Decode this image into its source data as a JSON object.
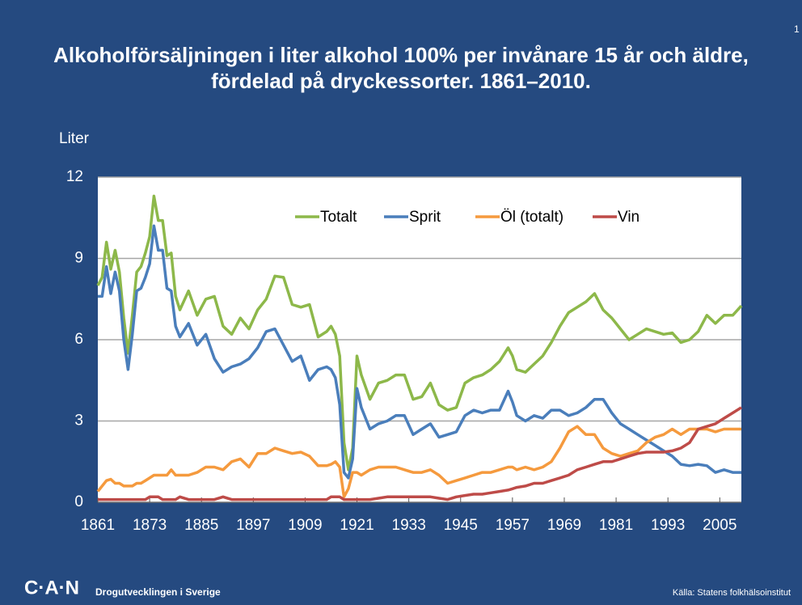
{
  "page_number": "1",
  "chart_data": {
    "type": "line",
    "title": "Alkoholförsäljningen i liter alkohol 100% per invånare 15 år och äldre, fördelad på dryckessorter. 1861–2010.",
    "y_label": "Liter",
    "x": [
      1861,
      1862,
      1863,
      1864,
      1865,
      1866,
      1867,
      1868,
      1869,
      1870,
      1871,
      1872,
      1873,
      1874,
      1875,
      1876,
      1877,
      1878,
      1879,
      1880,
      1882,
      1884,
      1886,
      1888,
      1890,
      1892,
      1894,
      1896,
      1898,
      1900,
      1902,
      1904,
      1906,
      1908,
      1910,
      1912,
      1914,
      1915,
      1916,
      1917,
      1918,
      1919,
      1920,
      1921,
      1922,
      1924,
      1926,
      1928,
      1930,
      1932,
      1934,
      1936,
      1938,
      1940,
      1942,
      1944,
      1946,
      1948,
      1950,
      1952,
      1954,
      1956,
      1957,
      1958,
      1960,
      1962,
      1964,
      1966,
      1968,
      1970,
      1972,
      1974,
      1976,
      1978,
      1980,
      1982,
      1984,
      1986,
      1988,
      1990,
      1992,
      1994,
      1996,
      1998,
      2000,
      2002,
      2004,
      2006,
      2008,
      2010
    ],
    "series": [
      {
        "name": "Totalt",
        "color": "#8db84a",
        "values": [
          8.0,
          8.3,
          9.6,
          8.6,
          9.3,
          8.5,
          6.8,
          5.5,
          6.9,
          8.5,
          8.7,
          9.2,
          9.8,
          11.3,
          10.4,
          10.4,
          9.1,
          9.2,
          7.6,
          7.1,
          7.8,
          6.9,
          7.5,
          7.6,
          6.5,
          6.2,
          6.8,
          6.4,
          7.1,
          7.5,
          8.35,
          8.3,
          7.3,
          7.2,
          7.3,
          6.1,
          6.3,
          6.5,
          6.2,
          5.4,
          2.2,
          1.2,
          2.0,
          5.4,
          4.7,
          3.8,
          4.4,
          4.5,
          4.7,
          4.7,
          3.8,
          3.9,
          4.4,
          3.6,
          3.4,
          3.5,
          4.4,
          4.6,
          4.7,
          4.9,
          5.2,
          5.7,
          5.4,
          4.9,
          4.8,
          5.1,
          5.4,
          5.9,
          6.5,
          7.0,
          7.2,
          7.4,
          7.7,
          7.1,
          6.8,
          6.4,
          6.0,
          6.2,
          6.4,
          6.3,
          6.2,
          6.25,
          5.9,
          6.0,
          6.3,
          6.9,
          6.6,
          6.9,
          6.9,
          7.25
        ]
      },
      {
        "name": "Sprit",
        "color": "#4a7ebb",
        "values": [
          7.6,
          7.6,
          8.7,
          7.7,
          8.5,
          7.8,
          6.0,
          4.9,
          6.2,
          7.8,
          7.9,
          8.3,
          8.8,
          10.2,
          9.3,
          9.3,
          7.9,
          7.8,
          6.5,
          6.1,
          6.6,
          5.8,
          6.2,
          5.3,
          4.8,
          5.0,
          5.1,
          5.3,
          5.7,
          6.3,
          6.4,
          5.8,
          5.2,
          5.4,
          4.5,
          4.9,
          5.0,
          4.9,
          4.6,
          3.6,
          1.1,
          0.9,
          1.6,
          4.2,
          3.5,
          2.7,
          2.9,
          3.0,
          3.2,
          3.2,
          2.5,
          2.7,
          2.9,
          2.4,
          2.5,
          2.6,
          3.2,
          3.4,
          3.3,
          3.4,
          3.4,
          4.1,
          3.7,
          3.2,
          3.0,
          3.2,
          3.1,
          3.4,
          3.4,
          3.2,
          3.3,
          3.5,
          3.8,
          3.8,
          3.3,
          2.9,
          2.7,
          2.5,
          2.3,
          2.1,
          1.9,
          1.7,
          1.4,
          1.35,
          1.4,
          1.35,
          1.1,
          1.2,
          1.1,
          1.1
        ]
      },
      {
        "name": "Öl (totalt)",
        "color": "#f59a3e",
        "values": [
          0.4,
          0.6,
          0.8,
          0.85,
          0.7,
          0.7,
          0.6,
          0.6,
          0.6,
          0.7,
          0.7,
          0.8,
          0.9,
          1.0,
          1.0,
          1.0,
          1.0,
          1.2,
          1.0,
          1.0,
          1.0,
          1.1,
          1.3,
          1.3,
          1.2,
          1.5,
          1.6,
          1.3,
          1.8,
          1.8,
          2.0,
          1.9,
          1.8,
          1.85,
          1.7,
          1.35,
          1.35,
          1.4,
          1.5,
          1.3,
          0.2,
          0.5,
          1.1,
          1.1,
          1.0,
          1.2,
          1.3,
          1.3,
          1.3,
          1.2,
          1.1,
          1.1,
          1.2,
          1.0,
          0.7,
          0.8,
          0.9,
          1.0,
          1.1,
          1.1,
          1.2,
          1.3,
          1.3,
          1.2,
          1.3,
          1.2,
          1.3,
          1.5,
          2.0,
          2.6,
          2.8,
          2.5,
          2.5,
          2.0,
          1.8,
          1.7,
          1.8,
          1.9,
          2.2,
          2.4,
          2.5,
          2.7,
          2.5,
          2.7,
          2.7,
          2.7,
          2.6,
          2.7,
          2.7,
          2.7
        ]
      },
      {
        "name": "Vin",
        "color": "#be4b48",
        "values": [
          0.1,
          0.1,
          0.1,
          0.1,
          0.1,
          0.1,
          0.1,
          0.1,
          0.1,
          0.1,
          0.1,
          0.1,
          0.2,
          0.2,
          0.2,
          0.1,
          0.1,
          0.1,
          0.1,
          0.2,
          0.1,
          0.1,
          0.1,
          0.1,
          0.2,
          0.1,
          0.1,
          0.1,
          0.1,
          0.1,
          0.1,
          0.1,
          0.1,
          0.1,
          0.1,
          0.1,
          0.1,
          0.2,
          0.2,
          0.2,
          0.1,
          0.1,
          0.1,
          0.1,
          0.1,
          0.1,
          0.15,
          0.2,
          0.2,
          0.2,
          0.2,
          0.2,
          0.2,
          0.15,
          0.1,
          0.2,
          0.25,
          0.3,
          0.3,
          0.35,
          0.4,
          0.45,
          0.5,
          0.55,
          0.6,
          0.7,
          0.7,
          0.8,
          0.9,
          1.0,
          1.2,
          1.3,
          1.4,
          1.5,
          1.5,
          1.6,
          1.7,
          1.8,
          1.85,
          1.85,
          1.85,
          1.9,
          2.0,
          2.2,
          2.7,
          2.8,
          2.9,
          3.1,
          3.3,
          3.5
        ]
      }
    ],
    "xlim": [
      1861,
      2010
    ],
    "xticks": [
      1861,
      1873,
      1885,
      1897,
      1909,
      1921,
      1933,
      1945,
      1957,
      1969,
      1981,
      1993,
      2005
    ],
    "ylim": [
      0,
      12
    ],
    "yticks": [
      0,
      3,
      6,
      9,
      12
    ],
    "grid": true,
    "legend": "top"
  },
  "footer": {
    "logo": "C·A·N",
    "subtitle": "Drogutvecklingen i Sverige",
    "source": "Källa: Statens folkhälsoinstitut"
  }
}
